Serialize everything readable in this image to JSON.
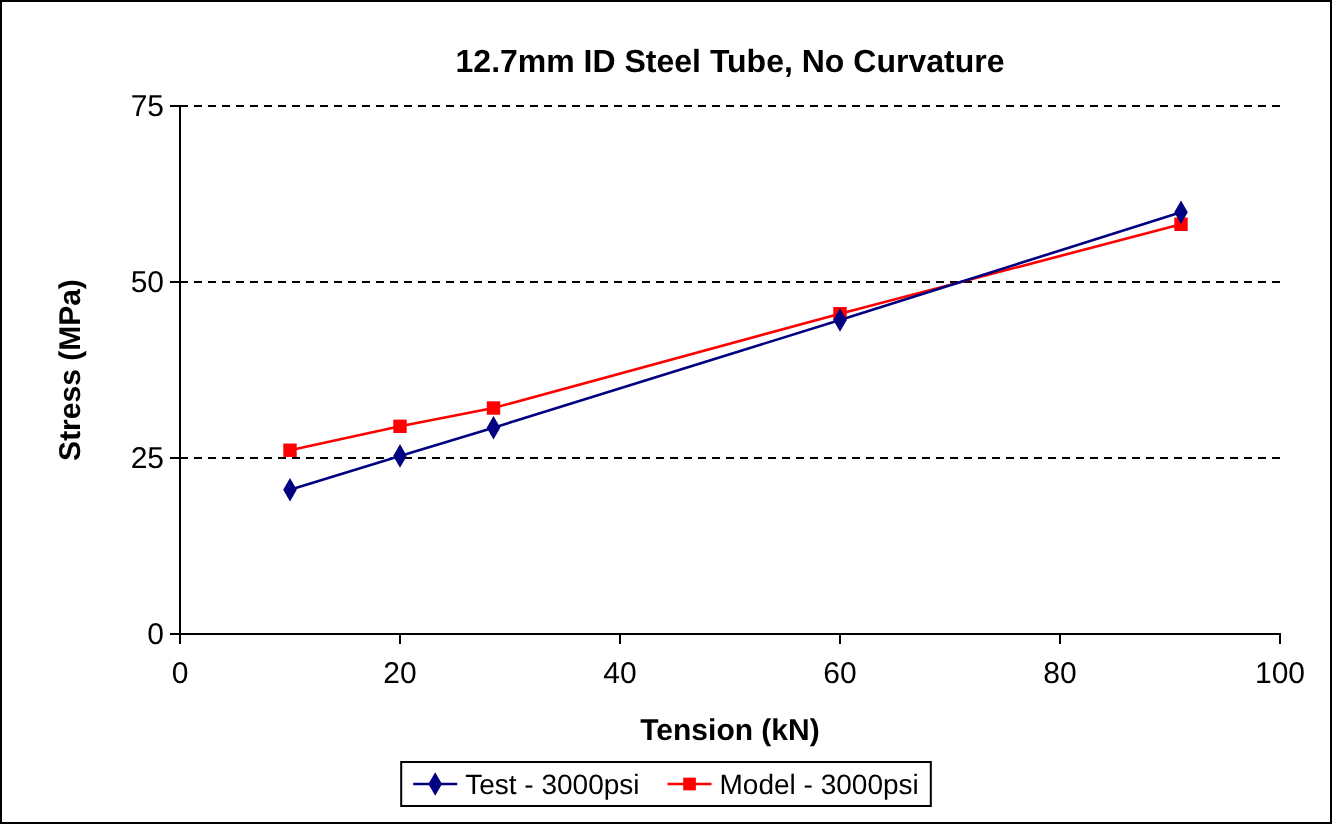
{
  "chart_data": {
    "type": "line",
    "title": "12.7mm ID Steel Tube, No Curvature",
    "xlabel": "Tension (kN)",
    "ylabel": "Stress (MPa)",
    "xlim": [
      0,
      100
    ],
    "xticks": [
      0,
      20,
      40,
      60,
      80,
      100
    ],
    "ylim": [
      0,
      75
    ],
    "yticks": [
      0,
      25,
      50,
      75
    ],
    "grid": "y",
    "legend": "bottom",
    "series": [
      {
        "name": "Test - 3000psi",
        "color": "#000080",
        "marker": "diamond",
        "x": [
          10,
          20,
          28.5,
          60,
          91
        ],
        "values": [
          20.5,
          25.3,
          29.3,
          44.6,
          59.9
        ]
      },
      {
        "name": "Model - 3000psi",
        "color": "#ff0000",
        "marker": "square",
        "x": [
          10,
          20,
          28.5,
          60,
          91
        ],
        "values": [
          26.1,
          29.5,
          32.1,
          45.5,
          58.2
        ]
      }
    ]
  }
}
